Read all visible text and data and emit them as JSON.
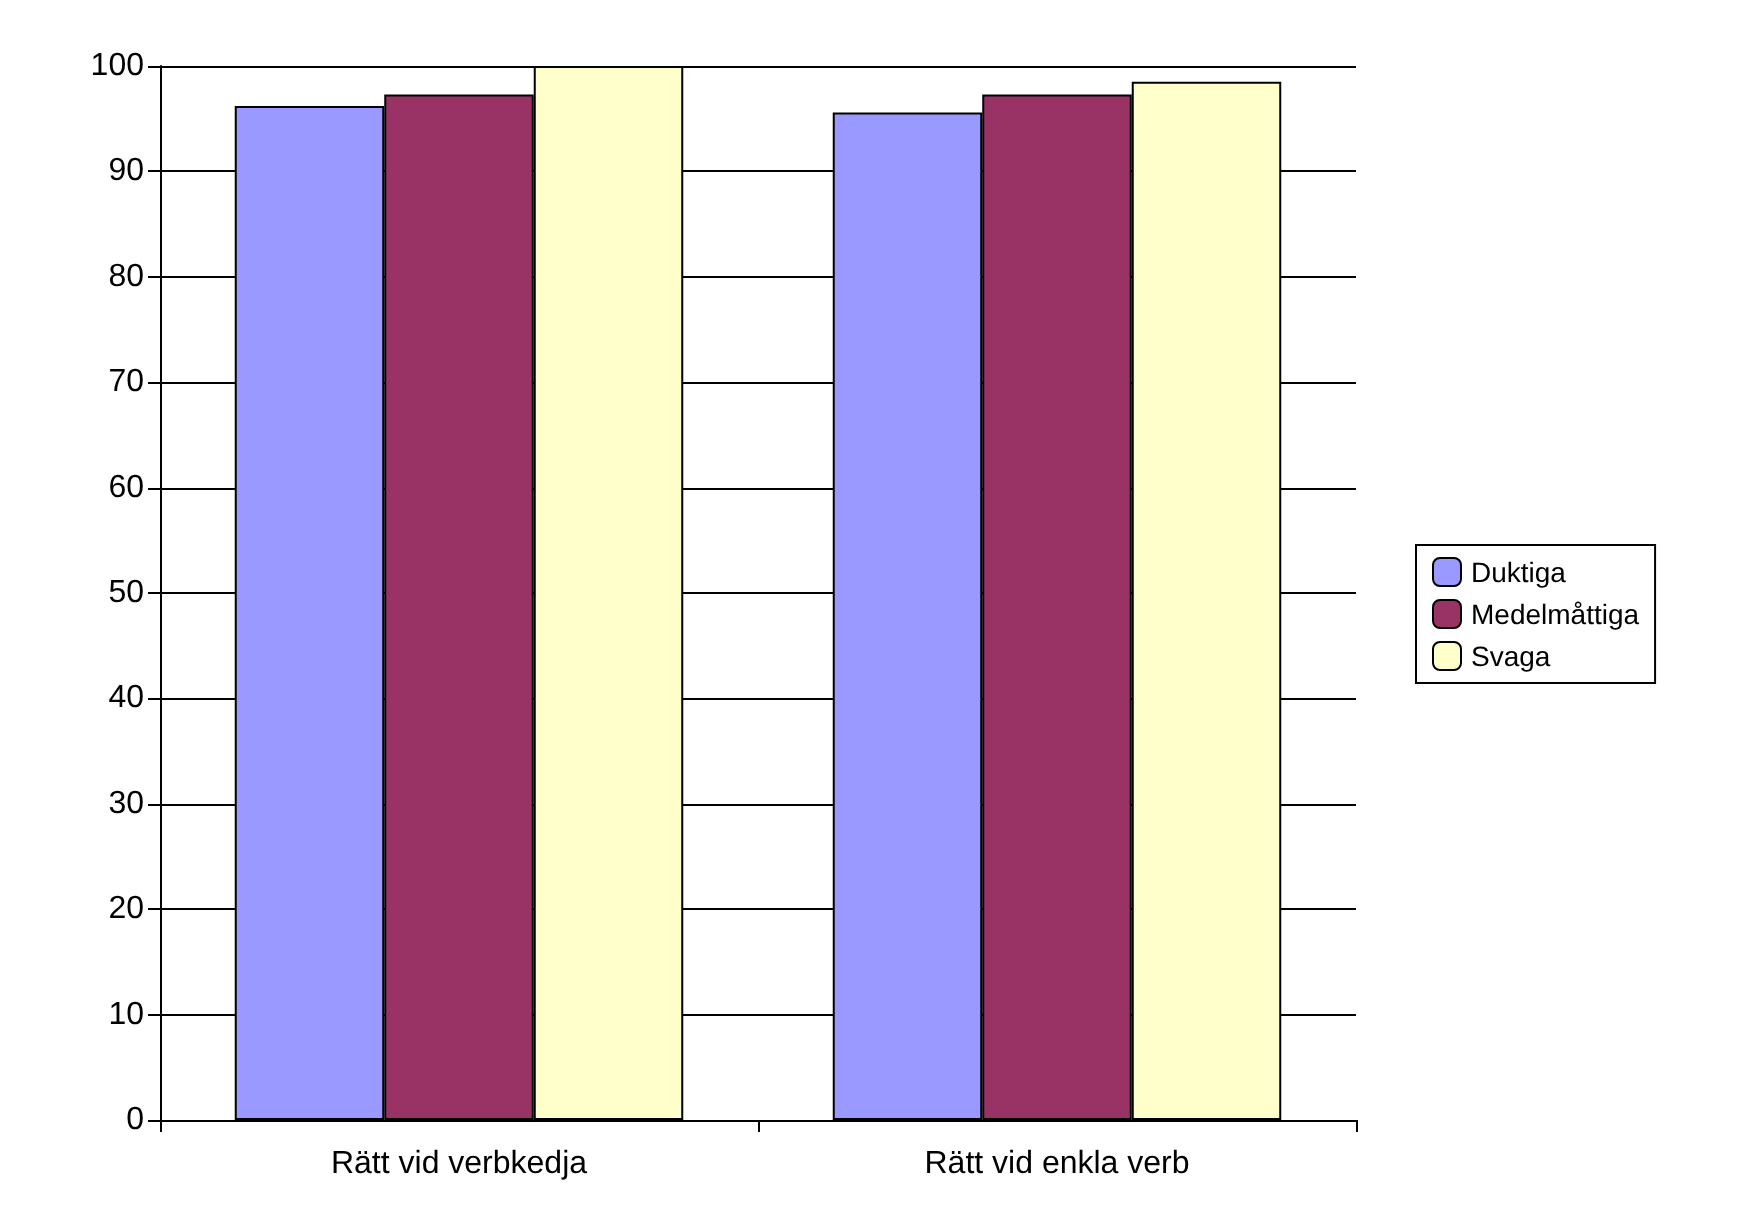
{
  "chart_data": {
    "type": "bar",
    "categories": [
      "Rätt vid verbkedja",
      "Rätt vid enkla verb"
    ],
    "series": [
      {
        "name": "Duktiga",
        "color": "#9999ff",
        "values": [
          96.2,
          95.6
        ]
      },
      {
        "name": "Medelmåttiga",
        "color": "#993366",
        "values": [
          97.3,
          97.3
        ]
      },
      {
        "name": "Svaga",
        "color": "#ffffcc",
        "values": [
          100,
          98.5
        ]
      }
    ],
    "ylim": [
      0,
      100
    ],
    "yticks": [
      0,
      10,
      20,
      30,
      40,
      50,
      60,
      70,
      80,
      90,
      100
    ],
    "grid": "y",
    "legend": "right"
  }
}
